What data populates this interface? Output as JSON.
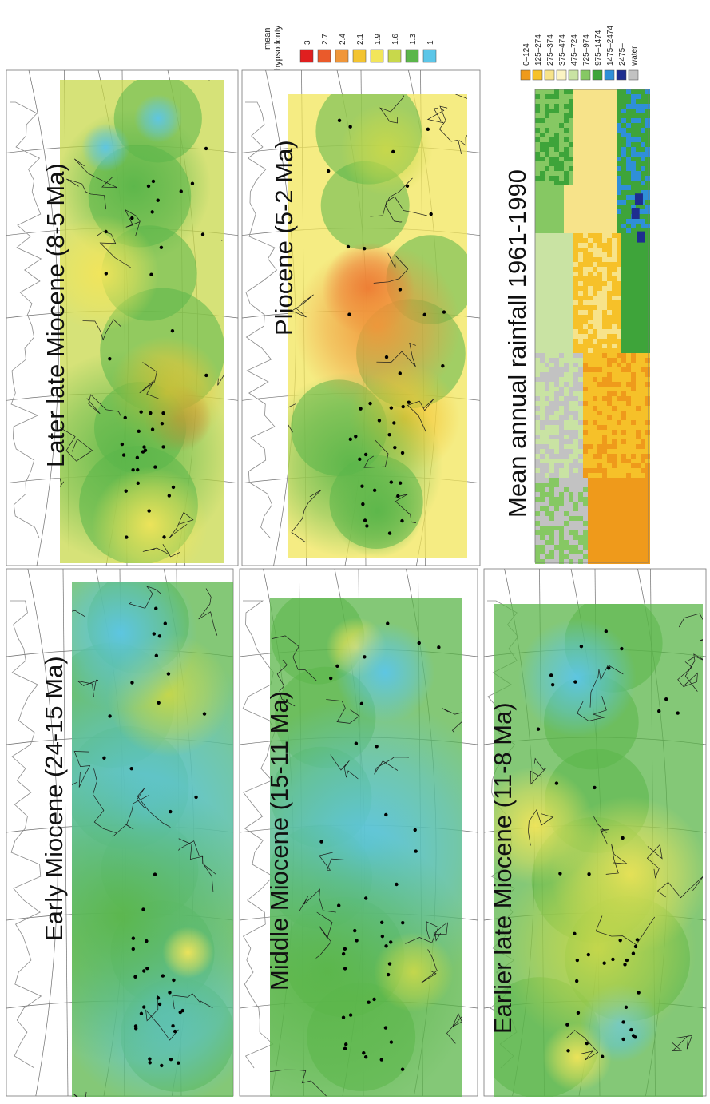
{
  "colors": {
    "h1.0": "#5cc6e8",
    "h1.3": "#5bb64a",
    "h1.6": "#c8d84b",
    "h1.9": "#f2e55a",
    "h2.1": "#f3c431",
    "h2.4": "#f0963a",
    "h2.7": "#ea5a2b",
    "h3.0": "#e01f1f",
    "rain_0_124": "#ef9a1b",
    "rain_125_274": "#f6c129",
    "rain_275_374": "#f7e38a",
    "rain_375_474": "#fbf4c3",
    "rain_475_724": "#c9e3a3",
    "rain_725_974": "#86c863",
    "rain_975_1474": "#3ea43a",
    "rain_1475_2474": "#2f8fd8",
    "rain_2475": "#1e2d8f",
    "rain_water": "#c2c2c2"
  },
  "panels": [
    {
      "id": "early-miocene",
      "title": "Early Miocene (24-15 Ma)",
      "base": "h1.3",
      "blobs": [
        {
          "h": 1.0,
          "lon": 0.55,
          "lat": 0.45,
          "r": 0.32
        },
        {
          "h": 1.0,
          "lon": 0.18,
          "lat": 0.55,
          "r": 0.2
        },
        {
          "h": 1.3,
          "lon": 0.35,
          "lat": 0.3,
          "r": 0.28
        },
        {
          "h": 1.9,
          "lon": 0.28,
          "lat": 0.72,
          "r": 0.05
        },
        {
          "h": 1.6,
          "lon": 0.78,
          "lat": 0.6,
          "r": 0.12
        },
        {
          "h": 1.0,
          "lon": 0.9,
          "lat": 0.3,
          "r": 0.15
        }
      ]
    },
    {
      "id": "middle-miocene",
      "title": "Middle Miocene (15-11 Ma)",
      "base": "h1.3",
      "blobs": [
        {
          "h": 1.0,
          "lon": 0.5,
          "lat": 0.5,
          "r": 0.3
        },
        {
          "h": 1.3,
          "lon": 0.25,
          "lat": 0.3,
          "r": 0.3
        },
        {
          "h": 1.9,
          "lon": 0.9,
          "lat": 0.45,
          "r": 0.06
        },
        {
          "h": 1.0,
          "lon": 0.85,
          "lat": 0.6,
          "r": 0.1
        },
        {
          "h": 1.6,
          "lon": 0.25,
          "lat": 0.75,
          "r": 0.08
        }
      ]
    },
    {
      "id": "earlier-late-miocene",
      "title": "Earlier late Miocene (11-8 Ma)",
      "base": "h1.3",
      "blobs": [
        {
          "h": 1.9,
          "lon": 0.45,
          "lat": 0.65,
          "r": 0.16
        },
        {
          "h": 1.9,
          "lon": 0.55,
          "lat": 0.2,
          "r": 0.12
        },
        {
          "h": 1.0,
          "lon": 0.85,
          "lat": 0.4,
          "r": 0.12
        },
        {
          "h": 1.9,
          "lon": 0.08,
          "lat": 0.4,
          "r": 0.07
        },
        {
          "h": 1.0,
          "lon": 0.15,
          "lat": 0.6,
          "r": 0.08
        },
        {
          "h": 1.6,
          "lon": 0.3,
          "lat": 0.5,
          "r": 0.2
        }
      ]
    },
    {
      "id": "later-late-miocene",
      "title": "Later late Miocene (8-5 Ma)",
      "base": "h1.6",
      "blobs": [
        {
          "h": 2.7,
          "lon": 0.3,
          "lat": 0.72,
          "r": 0.07
        },
        {
          "h": 2.1,
          "lon": 0.35,
          "lat": 0.65,
          "r": 0.12
        },
        {
          "h": 1.3,
          "lon": 0.22,
          "lat": 0.4,
          "r": 0.22
        },
        {
          "h": 1.3,
          "lon": 0.78,
          "lat": 0.45,
          "r": 0.16
        },
        {
          "h": 1.0,
          "lon": 0.86,
          "lat": 0.28,
          "r": 0.05
        },
        {
          "h": 1.0,
          "lon": 0.92,
          "lat": 0.6,
          "r": 0.05
        },
        {
          "h": 1.9,
          "lon": 0.6,
          "lat": 0.25,
          "r": 0.12
        },
        {
          "h": 1.9,
          "lon": 0.08,
          "lat": 0.55,
          "r": 0.12
        }
      ]
    },
    {
      "id": "pliocene",
      "title": "Pliocene (5-2 Ma)",
      "base": "h1.9",
      "blobs": [
        {
          "h": 2.7,
          "lon": 0.58,
          "lat": 0.45,
          "r": 0.1
        },
        {
          "h": 2.4,
          "lon": 0.5,
          "lat": 0.5,
          "r": 0.18
        },
        {
          "h": 2.1,
          "lon": 0.3,
          "lat": 0.65,
          "r": 0.12
        },
        {
          "h": 1.3,
          "lon": 0.2,
          "lat": 0.35,
          "r": 0.2
        },
        {
          "h": 1.3,
          "lon": 0.1,
          "lat": 0.5,
          "r": 0.1
        },
        {
          "h": 1.6,
          "lon": 0.88,
          "lat": 0.55,
          "r": 0.1
        }
      ]
    }
  ],
  "legend": {
    "title": "mean\nhypsodonty",
    "entries": [
      {
        "label": "3",
        "color": "h3.0"
      },
      {
        "label": "2.7",
        "color": "h2.7"
      },
      {
        "label": "2.4",
        "color": "h2.4"
      },
      {
        "label": "2.1",
        "color": "h2.1"
      },
      {
        "label": "1.9",
        "color": "h1.9"
      },
      {
        "label": "1.6",
        "color": "h1.6"
      },
      {
        "label": "1.3",
        "color": "h1.3"
      },
      {
        "label": "1",
        "color": "h1.0"
      }
    ]
  },
  "rainfall": {
    "title": "Mean annual rainfall 1961-1990",
    "entries": [
      {
        "label": "0–124",
        "color": "rain_0_124"
      },
      {
        "label": "125–274",
        "color": "rain_125_274"
      },
      {
        "label": "275–374",
        "color": "rain_275_374"
      },
      {
        "label": "375–474",
        "color": "rain_375_474"
      },
      {
        "label": "475–724",
        "color": "rain_475_724"
      },
      {
        "label": "725–974",
        "color": "rain_725_974"
      },
      {
        "label": "975–1474",
        "color": "rain_975_1474"
      },
      {
        "label": "1475–2474",
        "color": "rain_1475_2474"
      },
      {
        "label": "2475–",
        "color": "rain_2475"
      },
      {
        "label": "water",
        "color": "rain_water"
      }
    ]
  }
}
